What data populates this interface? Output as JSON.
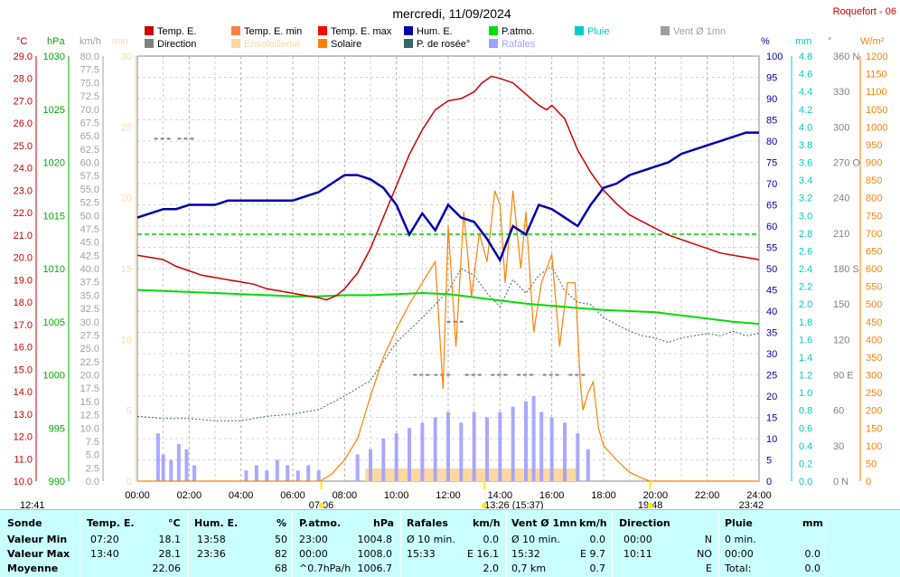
{
  "header": {
    "title": "mercredi, 11/09/2024",
    "station": "Roquefort - 06"
  },
  "legend": {
    "items": [
      {
        "label": "Temp. E.",
        "color": "#cc0000",
        "text_color": "#000000"
      },
      {
        "label": "Temp. E. min",
        "color": "#ff8040",
        "text_color": "#000000"
      },
      {
        "label": "Temp. E. max",
        "color": "#ff0000",
        "text_color": "#000000"
      },
      {
        "label": "Hum. E.",
        "color": "#0000aa",
        "text_color": "#000000"
      },
      {
        "label": "P.atmo.",
        "color": "#00dd00",
        "text_color": "#000000"
      },
      {
        "label": "Pluie",
        "color": "#00cccc",
        "text_color": "#00cccc"
      },
      {
        "label": "Vent Ø 1mn",
        "color": "#a0a0a0",
        "text_color": "#a0a0a0"
      },
      {
        "label": "Direction",
        "color": "#808080",
        "text_color": "#000000"
      },
      {
        "label": "Ensoleilleme",
        "color": "#ffd8a0",
        "text_color": "#ffd8a0"
      },
      {
        "label": "Solaire",
        "color": "#ff8000",
        "text_color": "#000000"
      },
      {
        "label": "P. de rosée°",
        "color": "#336666",
        "text_color": "#000000"
      },
      {
        "label": "Rafales",
        "color": "#a0a0ff",
        "text_color": "#a0a0ff"
      }
    ]
  },
  "axes": {
    "temp": {
      "unit": "°C",
      "color": "#cc0000",
      "ticks": [
        "29.0",
        "28.0",
        "27.0",
        "26.0",
        "25.0",
        "24.0",
        "23.0",
        "22.0",
        "21.0",
        "20.0",
        "19.0",
        "18.0",
        "17.0",
        "16.0",
        "15.0",
        "14.0",
        "13.0",
        "12.0",
        "11.0",
        "10.0"
      ]
    },
    "press": {
      "unit": "hPa",
      "color": "#00aa00",
      "ticks": [
        "1030",
        "1025",
        "1020",
        "1015",
        "1010",
        "1005",
        "1000",
        "995",
        "990"
      ]
    },
    "wind": {
      "unit": "km/h",
      "color": "#a0a0a0",
      "ticks": [
        "80.0",
        "77.5",
        "75.0",
        "72.5",
        "70.0",
        "67.5",
        "65.0",
        "62.5",
        "60.0",
        "57.5",
        "55.0",
        "52.5",
        "50.0",
        "47.5",
        "45.0",
        "42.5",
        "40.0",
        "37.5",
        "35.0",
        "32.5",
        "30.0",
        "27.5",
        "25.0",
        "22.5",
        "20.0",
        "17.5",
        "15.0",
        "12.5",
        "10.0",
        "7.5",
        "5.0",
        "2.5",
        "0.0"
      ]
    },
    "min": {
      "unit": "min",
      "color": "#ffd8a0",
      "ticks": [
        "30",
        "25",
        "20",
        "15",
        "10",
        "5",
        "0"
      ]
    },
    "hum": {
      "unit": "%",
      "color": "#0000aa",
      "ticks": [
        "100",
        "95",
        "90",
        "85",
        "80",
        "75",
        "70",
        "65",
        "60",
        "55",
        "50",
        "45",
        "40",
        "35",
        "30",
        "25",
        "20",
        "15",
        "10",
        "5",
        "0"
      ]
    },
    "rain": {
      "unit": "mm",
      "color": "#00cccc",
      "ticks": [
        "4.8",
        "4.6",
        "4.4",
        "4.2",
        "4.0",
        "3.8",
        "3.6",
        "3.4",
        "3.2",
        "3.0",
        "2.8",
        "2.6",
        "2.4",
        "2.2",
        "2.0",
        "1.8",
        "1.6",
        "1.4",
        "1.2",
        "1.0",
        "0.8",
        "0.6",
        "0.4",
        "0.2",
        "0.0"
      ]
    },
    "dir": {
      "unit": "°",
      "color": "#808080",
      "ticks": [
        "360 N",
        "330",
        "300",
        "270 O",
        "240",
        "210",
        "180 S",
        "150",
        "120",
        "90  E",
        "60",
        "30",
        "0  N"
      ]
    },
    "solar": {
      "unit": "W/m²",
      "color": "#ff8000",
      "ticks": [
        "1200",
        "1150",
        "1100",
        "1050",
        "1000",
        "950",
        "900",
        "850",
        "800",
        "750",
        "700",
        "650",
        "600",
        "550",
        "500",
        "450",
        "400",
        "350",
        "300",
        "250",
        "200",
        "150",
        "100",
        "50",
        "0"
      ]
    },
    "x": {
      "ticks": [
        "00:00",
        "02:00",
        "04:00",
        "06:00",
        "08:00",
        "10:00",
        "12:00",
        "14:00",
        "16:00",
        "18:00",
        "20:00",
        "22:00",
        "24:00"
      ]
    }
  },
  "markers": {
    "left": "12:41",
    "sunrise": "07:06",
    "noon": "13:26 (15:37)",
    "sunset": "19:48",
    "right": "23:42"
  },
  "chart_data": {
    "type": "line",
    "x_unit": "hour",
    "xlim": [
      0,
      24
    ],
    "series": [
      {
        "name": "Temp. E.",
        "unit": "°C",
        "ylim": [
          10,
          29
        ],
        "color": "#cc0000",
        "x": [
          0,
          0.5,
          1,
          1.5,
          2,
          2.5,
          3,
          3.5,
          4,
          4.5,
          5,
          5.5,
          6,
          6.5,
          7,
          7.3,
          7.7,
          8,
          8.5,
          9,
          9.5,
          10,
          10.5,
          11,
          11.5,
          12,
          12.5,
          13,
          13.3,
          13.67,
          14,
          14.5,
          15,
          15.5,
          15.8,
          16,
          16.5,
          17,
          17.5,
          18,
          18.5,
          19,
          19.5,
          20,
          20.5,
          21,
          21.5,
          22,
          22.5,
          23,
          23.5,
          24
        ],
        "y": [
          20.1,
          20.0,
          19.9,
          19.6,
          19.4,
          19.2,
          19.1,
          19.0,
          18.9,
          18.8,
          18.6,
          18.5,
          18.4,
          18.3,
          18.2,
          18.1,
          18.3,
          18.6,
          19.3,
          20.4,
          21.8,
          23.2,
          24.6,
          25.7,
          26.6,
          27.0,
          27.1,
          27.4,
          27.8,
          28.1,
          28.0,
          27.8,
          27.3,
          26.8,
          26.6,
          26.8,
          26.2,
          24.8,
          23.8,
          23.0,
          22.4,
          21.9,
          21.6,
          21.3,
          21.0,
          20.8,
          20.6,
          20.4,
          20.2,
          20.1,
          20.0,
          19.9
        ]
      },
      {
        "name": "Hum. E.",
        "unit": "%",
        "ylim": [
          0,
          100
        ],
        "color": "#0000aa",
        "x": [
          0,
          0.5,
          1,
          1.5,
          2,
          2.5,
          3,
          3.5,
          4,
          4.5,
          5,
          5.5,
          6,
          6.5,
          7,
          7.5,
          8,
          8.5,
          9,
          9.5,
          10,
          10.5,
          11,
          11.5,
          12,
          12.5,
          13,
          13.5,
          14,
          14.5,
          15,
          15.5,
          16,
          16.5,
          17,
          17.5,
          18,
          18.5,
          19,
          19.5,
          20,
          20.5,
          21,
          21.5,
          22,
          22.5,
          23,
          23.5,
          24
        ],
        "y": [
          62,
          63,
          64,
          64,
          65,
          65,
          65,
          66,
          66,
          66,
          66,
          66,
          66,
          67,
          68,
          70,
          72,
          72,
          71,
          69,
          65,
          58,
          63,
          59,
          65,
          62,
          61,
          57,
          52,
          60,
          58,
          65,
          64,
          62,
          60,
          65,
          69,
          70,
          72,
          73,
          74,
          75,
          77,
          78,
          79,
          80,
          81,
          82,
          82
        ]
      },
      {
        "name": "P.atmo.",
        "unit": "hPa",
        "ylim": [
          990,
          1030
        ],
        "color": "#00dd00",
        "x": [
          0,
          1,
          2,
          3,
          4,
          5,
          6,
          7,
          8,
          9,
          10,
          11,
          12,
          13,
          14,
          15,
          16,
          17,
          18,
          19,
          20,
          21,
          22,
          23,
          24
        ],
        "y": [
          1008.0,
          1007.9,
          1007.8,
          1007.7,
          1007.6,
          1007.5,
          1007.4,
          1007.4,
          1007.5,
          1007.5,
          1007.6,
          1007.7,
          1007.6,
          1007.3,
          1007.0,
          1006.7,
          1006.5,
          1006.3,
          1006.1,
          1006.0,
          1005.9,
          1005.6,
          1005.3,
          1005.0,
          1004.8
        ]
      },
      {
        "name": "P. de rosée°",
        "unit": "°C",
        "ylim": [
          10,
          29
        ],
        "color": "#336666",
        "x": [
          0,
          1,
          2,
          3,
          4,
          5,
          6,
          7,
          8,
          9,
          10,
          11,
          12,
          12.5,
          13,
          13.5,
          14,
          14.5,
          15,
          15.5,
          16,
          16.5,
          17,
          17.5,
          18,
          18.5,
          19,
          19.5,
          20,
          20.5,
          21,
          21.5,
          22,
          22.5,
          23,
          23.5,
          24
        ],
        "y": [
          12.9,
          12.8,
          12.8,
          12.7,
          12.7,
          12.9,
          13.0,
          13.2,
          13.8,
          14.5,
          16.2,
          17.3,
          18.5,
          19.5,
          19.2,
          18.4,
          17.8,
          19.0,
          18.4,
          19.2,
          19.6,
          18.5,
          18.0,
          17.9,
          17.3,
          17.0,
          16.7,
          16.5,
          16.4,
          16.2,
          16.4,
          16.5,
          16.6,
          16.5,
          16.7,
          16.5,
          16.6
        ]
      },
      {
        "name": "Solaire",
        "unit": "W/m²",
        "ylim": [
          0,
          1200
        ],
        "color": "#ff8000",
        "x": [
          0,
          7.06,
          7.5,
          8,
          8.5,
          9,
          9.5,
          10,
          10.5,
          11,
          11.5,
          11.8,
          12,
          12.3,
          12.6,
          12.9,
          13.2,
          13.5,
          13.8,
          14,
          14.2,
          14.5,
          14.8,
          15.0,
          15.3,
          15.6,
          16.0,
          16.3,
          16.6,
          16.9,
          17.1,
          17.2,
          17.4,
          17.6,
          17.8,
          18.0,
          18.5,
          19,
          19.5,
          19.8,
          24
        ],
        "y": [
          0,
          0,
          20,
          60,
          120,
          240,
          350,
          430,
          500,
          560,
          620,
          260,
          720,
          380,
          760,
          520,
          700,
          620,
          820,
          780,
          560,
          820,
          600,
          760,
          420,
          560,
          640,
          380,
          560,
          560,
          280,
          200,
          250,
          280,
          150,
          100,
          60,
          25,
          8,
          0,
          0
        ]
      },
      {
        "name": "Rafales",
        "unit": "km/h",
        "ylim": [
          0,
          80
        ],
        "color": "#a0a0ff",
        "x": [
          0.8,
          1.0,
          1.3,
          1.6,
          1.9,
          2.2,
          4.2,
          4.6,
          5.0,
          5.4,
          5.8,
          6.2,
          6.6,
          7.0,
          8.5,
          9.0,
          9.5,
          10.0,
          10.5,
          11.0,
          11.5,
          12.0,
          12.5,
          13.0,
          13.5,
          14.0,
          14.5,
          15.0,
          15.3,
          15.6,
          16.0,
          16.5,
          17.0,
          17.4
        ],
        "y": [
          9,
          5,
          4,
          7,
          6,
          3,
          2,
          3,
          2,
          4,
          3,
          2,
          3,
          2,
          5,
          6,
          8,
          9,
          10,
          11,
          12,
          13,
          11,
          13,
          12,
          13,
          14,
          15,
          16,
          13,
          12,
          11,
          9,
          6
        ]
      },
      {
        "name": "Direction",
        "unit": "°",
        "ylim": [
          0,
          360
        ],
        "color": "#808080",
        "x": [
          1.0,
          1.9,
          11.0,
          11.8,
          12.3,
          13.0,
          14.0,
          15.0,
          16.0,
          17.0
        ],
        "y": [
          290,
          290,
          90,
          90,
          135,
          90,
          90,
          90,
          90,
          90
        ]
      }
    ]
  },
  "summary": {
    "headers": {
      "c1": "Sonde",
      "c2": "Temp. E.",
      "c2u": "°C",
      "c3": "Hum. E.",
      "c3u": "%",
      "c4": "P.atmo.",
      "c4u": "hPa",
      "c5": "Rafales",
      "c5u": "km/h",
      "c6": "Vent Ø 1mn",
      "c6u": "km/h",
      "c7": "Direction",
      "c8": "Pluie",
      "c8u": "mm"
    },
    "rows": [
      {
        "label": "Valeur Min",
        "t_time": "07:20",
        "t_val": "18.1",
        "h_time": "13:58",
        "h_val": "50",
        "p_time": "23:00",
        "p_val": "1004.8",
        "r_time": "Ø 10 min.",
        "r_val": "0.0",
        "v_time": "Ø 10 min.",
        "v_val": "0.0",
        "d_time": "00:00",
        "d_val": "N",
        "pl_time": "0 min.",
        "pl_val": ""
      },
      {
        "label": "Valeur Max",
        "t_time": "13:40",
        "t_val": "28.1",
        "h_time": "23:36",
        "h_val": "82",
        "p_time": "00:00",
        "p_val": "1008.0",
        "r_time": "15:33",
        "r_val": "E 16.1",
        "v_time": "15:32",
        "v_val": "E 9.7",
        "d_time": "10:11",
        "d_val": "NO",
        "pl_time": "00:00",
        "pl_val": "0.0"
      },
      {
        "label": "Moyenne",
        "t_time": "",
        "t_val": "22.06",
        "h_time": "",
        "h_val": "68",
        "p_time": "^0.7hPa/h",
        "p_val": "1006.7",
        "r_time": "",
        "r_val": "2.0",
        "v_time": "0,7 km",
        "v_val": "0.7",
        "d_time": "",
        "d_val": "E",
        "pl_time": "Total:",
        "pl_val": "0.0"
      }
    ]
  }
}
